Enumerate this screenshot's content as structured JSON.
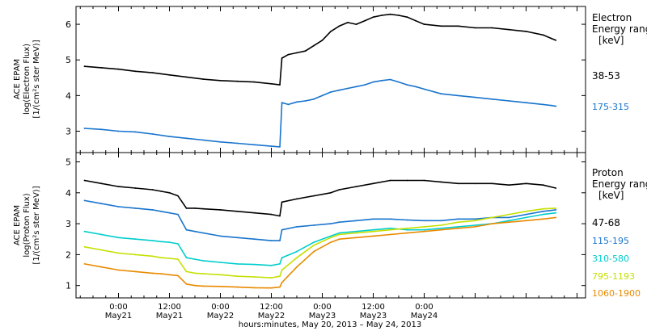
{
  "chart_data": [
    {
      "type": "line",
      "ylabel_lines": [
        "ACE EPAM",
        "log(Electron Flux)",
        "[1/(cm²s ster MeV)]"
      ],
      "legend_title": [
        "Electron",
        "Energy ranges",
        "[keV]"
      ],
      "yticks": [
        3,
        4,
        5,
        6
      ],
      "ylim": [
        2.4,
        6.5
      ],
      "xlim": [
        -10,
        110
      ],
      "series": [
        {
          "name": "38-53",
          "color": "#000000",
          "x": [
            -8,
            -4,
            0,
            4,
            8,
            12,
            16,
            20,
            24,
            28,
            32,
            36,
            38,
            38.5,
            40,
            42,
            44,
            46,
            48,
            50,
            52,
            54,
            56,
            58,
            60,
            62,
            64,
            66,
            68,
            70,
            72,
            76,
            80,
            84,
            88,
            92,
            96,
            100,
            102,
            103
          ],
          "y": [
            4.82,
            4.78,
            4.74,
            4.68,
            4.64,
            4.58,
            4.52,
            4.46,
            4.42,
            4.4,
            4.38,
            4.33,
            4.3,
            5.05,
            5.15,
            5.2,
            5.25,
            5.4,
            5.55,
            5.8,
            5.95,
            6.05,
            6.0,
            6.1,
            6.2,
            6.25,
            6.28,
            6.25,
            6.2,
            6.1,
            6.0,
            5.95,
            5.95,
            5.9,
            5.9,
            5.85,
            5.8,
            5.7,
            5.6,
            5.55
          ]
        },
        {
          "name": "175-315",
          "color": "#1874cd",
          "x": [
            -8,
            -4,
            0,
            4,
            8,
            12,
            16,
            20,
            24,
            28,
            32,
            36,
            38,
            38.5,
            40,
            42,
            44,
            46,
            48,
            50,
            52,
            54,
            56,
            58,
            60,
            62,
            64,
            66,
            68,
            70,
            72,
            76,
            80,
            84,
            88,
            92,
            96,
            100,
            102,
            103
          ],
          "y": [
            3.08,
            3.05,
            3.0,
            2.98,
            2.92,
            2.85,
            2.8,
            2.75,
            2.7,
            2.66,
            2.62,
            2.58,
            2.56,
            3.8,
            3.75,
            3.82,
            3.85,
            3.9,
            4.0,
            4.1,
            4.15,
            4.2,
            4.25,
            4.3,
            4.38,
            4.42,
            4.45,
            4.38,
            4.3,
            4.25,
            4.18,
            4.05,
            4.0,
            3.95,
            3.9,
            3.85,
            3.8,
            3.75,
            3.72,
            3.7
          ]
        }
      ]
    },
    {
      "type": "line",
      "ylabel_lines": [
        "ACE EPAM",
        "log(Proton Flux)",
        "[1/(cm²s ster MeV)]"
      ],
      "legend_title": [
        "Proton",
        "Energy ranges",
        "[keV]"
      ],
      "yticks": [
        1,
        2,
        3,
        4,
        5
      ],
      "ylim": [
        0.6,
        5.3
      ],
      "xlim": [
        -10,
        110
      ],
      "series": [
        {
          "name": "47-68",
          "color": "#000000",
          "x": [
            -8,
            -4,
            0,
            4,
            8,
            10,
            12,
            14,
            16,
            18,
            20,
            24,
            28,
            32,
            36,
            38,
            38.5,
            42,
            46,
            50,
            52,
            56,
            60,
            64,
            68,
            72,
            76,
            80,
            84,
            88,
            92,
            96,
            100,
            103
          ],
          "y": [
            4.4,
            4.3,
            4.2,
            4.15,
            4.1,
            4.05,
            4.0,
            3.9,
            3.5,
            3.5,
            3.48,
            3.45,
            3.4,
            3.35,
            3.3,
            3.25,
            3.7,
            3.8,
            3.9,
            4.0,
            4.1,
            4.2,
            4.3,
            4.4,
            4.4,
            4.4,
            4.35,
            4.3,
            4.3,
            4.3,
            4.25,
            4.3,
            4.25,
            4.15
          ]
        },
        {
          "name": "115-195",
          "color": "#1874cd",
          "x": [
            -8,
            -4,
            0,
            4,
            8,
            10,
            12,
            14,
            16,
            18,
            20,
            24,
            28,
            32,
            36,
            38,
            38.5,
            42,
            46,
            50,
            52,
            56,
            60,
            64,
            68,
            72,
            76,
            80,
            84,
            88,
            92,
            96,
            100,
            103
          ],
          "y": [
            3.75,
            3.65,
            3.55,
            3.5,
            3.45,
            3.4,
            3.35,
            3.3,
            2.8,
            2.75,
            2.7,
            2.6,
            2.55,
            2.5,
            2.45,
            2.45,
            2.8,
            2.9,
            2.95,
            3.0,
            3.05,
            3.1,
            3.15,
            3.15,
            3.12,
            3.1,
            3.1,
            3.15,
            3.15,
            3.2,
            3.2,
            3.3,
            3.4,
            3.45
          ]
        },
        {
          "name": "310-580",
          "color": "#00cdcd",
          "x": [
            -8,
            -4,
            0,
            4,
            8,
            10,
            12,
            14,
            16,
            18,
            20,
            24,
            28,
            32,
            36,
            38,
            38.5,
            42,
            46,
            50,
            52,
            56,
            60,
            64,
            68,
            72,
            76,
            80,
            84,
            88,
            92,
            96,
            100,
            103
          ],
          "y": [
            2.75,
            2.65,
            2.55,
            2.5,
            2.45,
            2.42,
            2.4,
            2.35,
            1.9,
            1.85,
            1.8,
            1.75,
            1.7,
            1.68,
            1.65,
            1.7,
            1.9,
            2.1,
            2.4,
            2.6,
            2.7,
            2.75,
            2.8,
            2.85,
            2.8,
            2.8,
            2.85,
            2.9,
            2.95,
            3.0,
            3.1,
            3.2,
            3.3,
            3.35
          ]
        },
        {
          "name": "795-1193",
          "color": "#c5e000",
          "x": [
            -8,
            -4,
            0,
            4,
            8,
            10,
            12,
            14,
            16,
            18,
            20,
            24,
            28,
            32,
            36,
            38,
            38.5,
            42,
            46,
            50,
            52,
            56,
            60,
            64,
            68,
            72,
            76,
            80,
            84,
            88,
            92,
            96,
            100,
            103
          ],
          "y": [
            2.25,
            2.15,
            2.05,
            2.0,
            1.95,
            1.9,
            1.88,
            1.85,
            1.45,
            1.4,
            1.38,
            1.35,
            1.3,
            1.28,
            1.25,
            1.3,
            1.5,
            1.9,
            2.3,
            2.55,
            2.65,
            2.7,
            2.75,
            2.8,
            2.85,
            2.9,
            2.95,
            3.05,
            3.1,
            3.2,
            3.3,
            3.4,
            3.48,
            3.5
          ]
        },
        {
          "name": "1060-1900",
          "color": "#e88a00",
          "x": [
            -8,
            -4,
            0,
            4,
            8,
            10,
            12,
            14,
            16,
            18,
            20,
            24,
            28,
            32,
            36,
            38,
            38.5,
            42,
            46,
            50,
            52,
            56,
            60,
            64,
            68,
            72,
            76,
            80,
            84,
            88,
            92,
            96,
            100,
            103
          ],
          "y": [
            1.7,
            1.6,
            1.5,
            1.45,
            1.4,
            1.38,
            1.35,
            1.32,
            1.05,
            1.0,
            0.98,
            0.97,
            0.95,
            0.93,
            0.92,
            0.95,
            1.1,
            1.6,
            2.1,
            2.4,
            2.5,
            2.55,
            2.6,
            2.65,
            2.7,
            2.75,
            2.8,
            2.85,
            2.9,
            3.0,
            3.05,
            3.1,
            3.15,
            3.2
          ]
        }
      ]
    }
  ],
  "x_axis": {
    "ticks": [
      {
        "h": 0,
        "time": "0:00",
        "date": "May21"
      },
      {
        "h": 12,
        "time": "12:00",
        "date": "May21"
      },
      {
        "h": 24,
        "time": "0:00",
        "date": "May22"
      },
      {
        "h": 36,
        "time": "12:00",
        "date": "May22"
      },
      {
        "h": 48,
        "time": "0:00",
        "date": "May23"
      },
      {
        "h": 60,
        "time": "12:00",
        "date": "May23"
      },
      {
        "h": 72,
        "time": "0:00",
        "date": "May24"
      }
    ],
    "label": "hours:minutes, May 20, 2013 – May 24, 2013"
  }
}
